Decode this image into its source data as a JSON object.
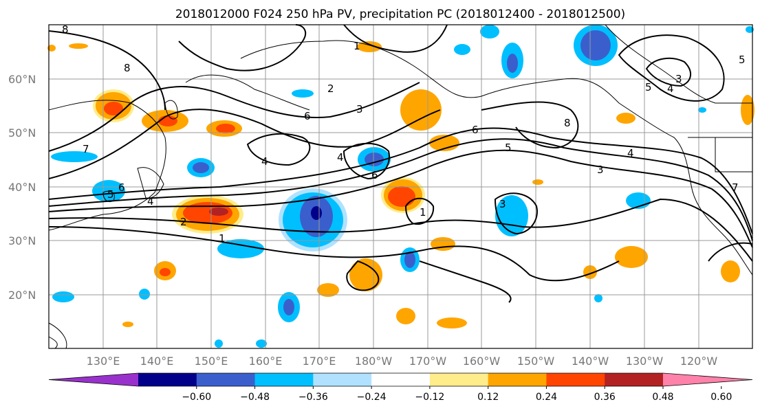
{
  "title": "2018012000 F024 250 hPa PV, precipitation PC (2018012400 - 2018012500)",
  "map": {
    "lat_labels": [
      "60°N",
      "50°N",
      "40°N",
      "30°N",
      "20°N"
    ],
    "lon_labels": [
      "130°E",
      "140°E",
      "150°E",
      "160°E",
      "170°E",
      "180°W",
      "170°W",
      "160°W",
      "150°W",
      "140°W",
      "130°W",
      "120°W"
    ],
    "contour_labels": [
      "8",
      "7",
      "6",
      "5",
      "4",
      "3",
      "2",
      "1"
    ]
  },
  "colorbar": {
    "ticks": [
      "−0.60",
      "−0.48",
      "−0.36",
      "−0.24",
      "−0.12",
      "0.12",
      "0.24",
      "0.36",
      "0.48",
      "0.60"
    ],
    "colors": [
      "#9932cc",
      "#00008b",
      "#3a5fcd",
      "#00bfff",
      "#b0e2ff",
      "#ffffff",
      "#ffec8b",
      "#ffa500",
      "#ff4500",
      "#b22222",
      "#ff82ab"
    ]
  },
  "palette": {
    "blue_light": "#b0e2ff",
    "blue": "#00bfff",
    "blue_dark": "#3a5fcd",
    "navy": "#00008b",
    "yellow": "#ffec8b",
    "orange": "#ffa500",
    "red": "#ff4500",
    "darkred": "#b22222"
  }
}
